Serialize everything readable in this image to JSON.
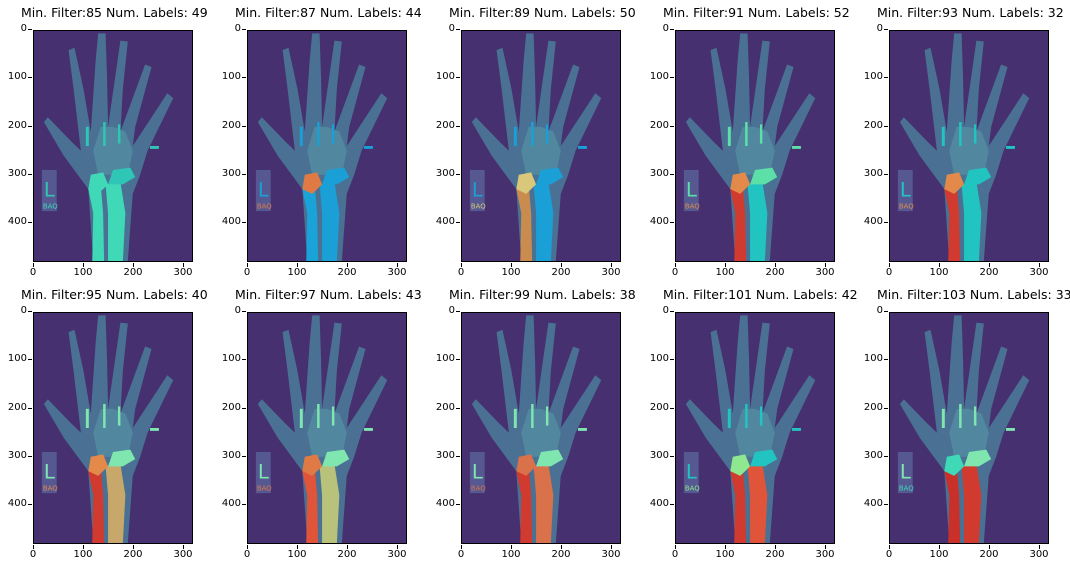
{
  "figure": {
    "panels": [
      {
        "title": "Min. Filter:85 Num. Labels: 49",
        "seg": [
          "#3fd9b8",
          "#3fd9b8",
          "#3fd9b8",
          "#2fc6b5"
        ],
        "xray_tint": "#4a8fa0"
      },
      {
        "title": "Min. Filter:87 Num. Labels: 44",
        "seg": [
          "#1a9fd6",
          "#1aa3d8",
          "#e07a45",
          "#1a9fd6"
        ],
        "xray_tint": "#4a8fa0"
      },
      {
        "title": "Min. Filter:89 Num. Labels: 50",
        "seg": [
          "#1a9fd6",
          "#c98b4e",
          "#d9c77a",
          "#1a9fd6"
        ],
        "xray_tint": "#4a8fa0"
      },
      {
        "title": "Min. Filter:91 Num. Labels: 52",
        "seg": [
          "#22c4c2",
          "#d13a2e",
          "#e38a4a",
          "#5ce0a8"
        ],
        "xray_tint": "#4a8fa0"
      },
      {
        "title": "Min. Filter:93 Num. Labels: 32",
        "seg": [
          "#22c4c2",
          "#d13a2e",
          "#e38a4a",
          "#22c4c2"
        ],
        "xray_tint": "#4a8fa0"
      },
      {
        "title": "Min. Filter:95 Num. Labels: 40",
        "seg": [
          "#c8a86a",
          "#d13a2e",
          "#e38a4a",
          "#7fe6b0"
        ],
        "xray_tint": "#4a8fa0"
      },
      {
        "title": "Min. Filter:97 Num. Labels: 43",
        "seg": [
          "#b8c27a",
          "#e0543a",
          "#e07a45",
          "#7fe6b0"
        ],
        "xray_tint": "#4a8fa0"
      },
      {
        "title": "Min. Filter:99 Num. Labels: 38",
        "seg": [
          "#d9714a",
          "#d13a2e",
          "#d9714a",
          "#7fe6b0"
        ],
        "xray_tint": "#4a8fa0"
      },
      {
        "title": "Min. Filter:101 Num. Labels: 42",
        "seg": [
          "#e0543a",
          "#d13a2e",
          "#8fe890",
          "#22c4c2"
        ],
        "xray_tint": "#4a8fa0"
      },
      {
        "title": "Min. Filter:103 Num. Labels: 33",
        "seg": [
          "#d13a2e",
          "#c9302a",
          "#3fd9b8",
          "#7fe6b0"
        ],
        "xray_tint": "#4a8fa0"
      }
    ],
    "yticks": [
      "0",
      "100",
      "200",
      "300",
      "400"
    ],
    "xticks": [
      "0",
      "100",
      "200",
      "300"
    ],
    "marker_letter": "L",
    "marker_sub": "BAQ"
  }
}
